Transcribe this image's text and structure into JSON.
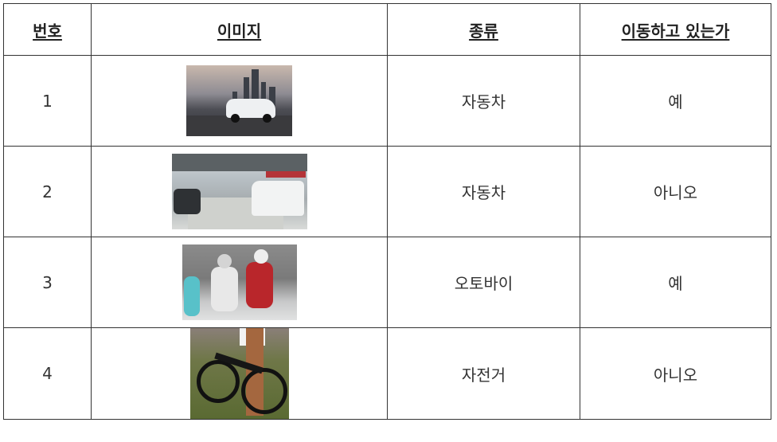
{
  "headers": [
    "번호",
    "이미지",
    "종류",
    "이동하고 있는가"
  ],
  "rows": [
    {
      "no": "1",
      "image_icon": "car-city-photo",
      "type": "자동차",
      "moving": "예"
    },
    {
      "no": "2",
      "image_icon": "parked-cars-photo",
      "type": "자동차",
      "moving": "아니오"
    },
    {
      "no": "3",
      "image_icon": "motorcycle-photo",
      "type": "오토바이",
      "moving": "예"
    },
    {
      "no": "4",
      "image_icon": "bicycle-photo",
      "type": "자전거",
      "moving": "아니오"
    }
  ]
}
